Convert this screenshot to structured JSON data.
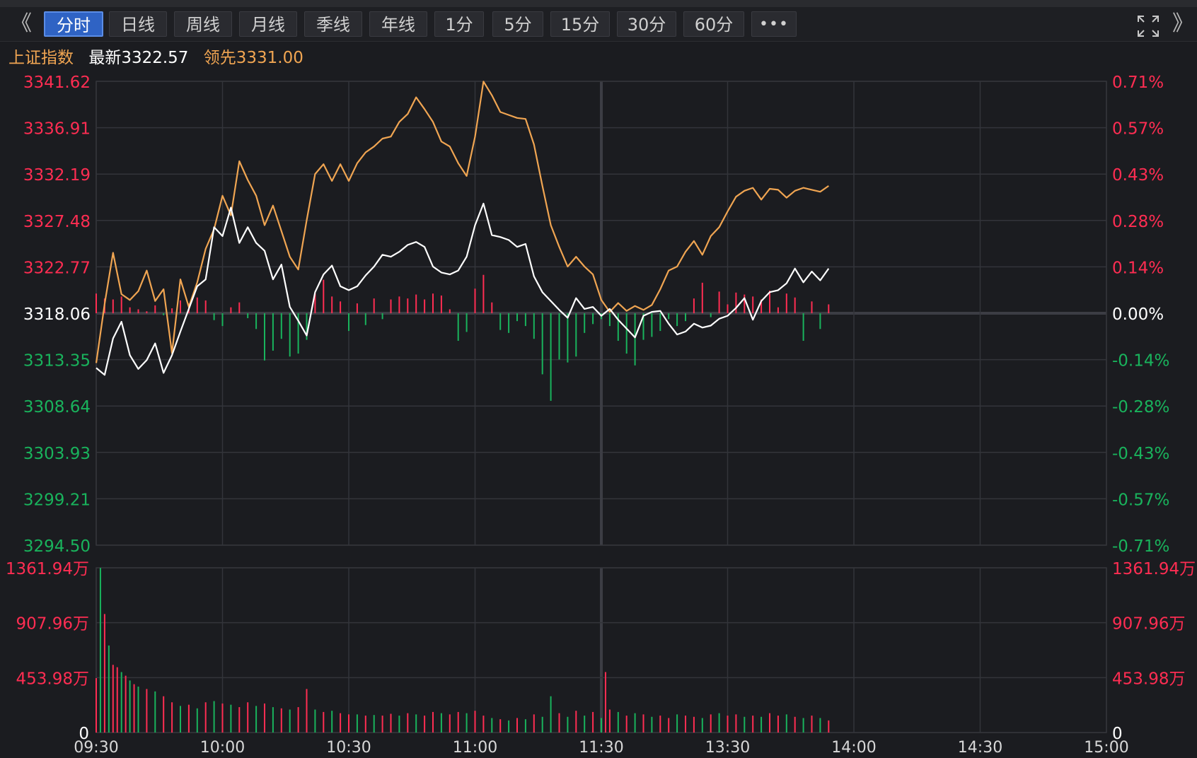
{
  "toolbar": {
    "left_arrow": "《",
    "right_arrow": "》",
    "tabs": [
      "分时",
      "日线",
      "周线",
      "月线",
      "季线",
      "年线",
      "1分",
      "5分",
      "15分",
      "30分",
      "60分",
      "•••"
    ],
    "active_tab": "分时"
  },
  "header": {
    "index_name": "上证指数",
    "latest": "最新3322.57",
    "leading": "领先3331.00"
  },
  "colors": {
    "background": "#1b1c20",
    "grid": "#33343a",
    "up": "#ff2d52",
    "down": "#19b35c",
    "price_line": "#ffffff",
    "leading_line": "#f0a552",
    "name_color": "#f0a552"
  },
  "chart_data": [
    {
      "type": "line",
      "title": "上证指数 分时",
      "base": 3318.06,
      "ylim": [
        3294.5,
        3341.62
      ],
      "y_tick_labels_left": [
        "3341.62",
        "3336.91",
        "3332.19",
        "3327.48",
        "3322.77",
        "3318.06",
        "3313.35",
        "3308.64",
        "3303.93",
        "3299.21",
        "3294.50"
      ],
      "y_tick_labels_right": [
        "0.71%",
        "0.57%",
        "0.43%",
        "0.28%",
        "0.14%",
        "0.00%",
        "-0.14%",
        "-0.28%",
        "-0.43%",
        "-0.57%",
        "-0.71%"
      ],
      "x_tick_labels": [
        "09:30",
        "10:00",
        "10:30",
        "11:00",
        "11:30",
        "13:30",
        "14:00",
        "14:30",
        "15:00"
      ],
      "x_minutes_total": 240,
      "series": [
        {
          "name": "最新",
          "x": [
            0,
            2,
            4,
            6,
            8,
            10,
            12,
            14,
            16,
            18,
            20,
            22,
            24,
            26,
            28,
            30,
            32,
            34,
            36,
            38,
            40,
            42,
            44,
            46,
            48,
            50,
            52,
            54,
            56,
            58,
            60,
            62,
            64,
            66,
            68,
            70,
            72,
            74,
            76,
            78,
            80,
            82,
            84,
            86,
            88,
            90,
            92,
            94,
            96,
            98,
            100,
            102,
            104,
            106,
            108,
            110,
            112,
            114,
            116,
            118,
            120,
            122,
            124,
            126,
            128,
            130,
            132,
            134,
            136,
            138,
            140,
            142,
            144,
            146,
            148,
            150,
            152,
            154,
            156,
            158,
            160,
            162,
            164,
            166,
            168,
            170,
            172,
            174
          ],
          "values": [
            3312.5,
            3311.8,
            3315.5,
            3317.2,
            3313.8,
            3312.4,
            3313.3,
            3315.0,
            3312.0,
            3313.8,
            3316.2,
            3318.5,
            3320.8,
            3321.5,
            3326.8,
            3325.9,
            3328.8,
            3325.2,
            3326.8,
            3325.2,
            3324.4,
            3321.5,
            3323.0,
            3318.7,
            3317.3,
            3315.8,
            3320.2,
            3322.0,
            3322.9,
            3320.8,
            3320.4,
            3320.8,
            3321.9,
            3322.8,
            3324.0,
            3323.8,
            3324.3,
            3325.0,
            3325.3,
            3324.8,
            3322.8,
            3322.2,
            3322.0,
            3322.4,
            3323.8,
            3327.0,
            3329.2,
            3326.0,
            3325.8,
            3325.5,
            3324.8,
            3325.1,
            3321.8,
            3320.2,
            3319.3,
            3318.4,
            3317.6,
            3319.6,
            3318.5,
            3318.7,
            3317.8,
            3318.5,
            3317.4,
            3316.5,
            3315.6,
            3317.8,
            3318.2,
            3318.3,
            3317.0,
            3315.9,
            3316.2,
            3317.0,
            3316.6,
            3316.8,
            3317.5,
            3317.8,
            3318.6,
            3319.6,
            3317.4,
            3319.3,
            3320.2,
            3320.4,
            3321.1,
            3322.6,
            3321.2,
            3322.3,
            3321.4,
            3322.6
          ]
        },
        {
          "name": "领先",
          "x": [
            0,
            2,
            4,
            6,
            8,
            10,
            12,
            14,
            16,
            18,
            20,
            22,
            24,
            26,
            28,
            30,
            32,
            34,
            36,
            38,
            40,
            42,
            44,
            46,
            48,
            50,
            52,
            54,
            56,
            58,
            60,
            62,
            64,
            66,
            68,
            70,
            72,
            74,
            76,
            78,
            80,
            82,
            84,
            86,
            88,
            90,
            92,
            94,
            96,
            98,
            100,
            102,
            104,
            106,
            108,
            110,
            112,
            114,
            116,
            118,
            120,
            122,
            124,
            126,
            128,
            130,
            132,
            134,
            136,
            138,
            140,
            142,
            144,
            146,
            148,
            150,
            152,
            154,
            156,
            158,
            160,
            162,
            164,
            166,
            168,
            170,
            172,
            174
          ],
          "values": [
            3313.0,
            3319.0,
            3324.2,
            3320.0,
            3319.4,
            3320.3,
            3322.4,
            3319.3,
            3320.5,
            3314.0,
            3321.5,
            3318.7,
            3321.2,
            3324.6,
            3326.6,
            3330.0,
            3328.0,
            3333.5,
            3331.6,
            3330.0,
            3327.0,
            3329.0,
            3326.4,
            3323.8,
            3322.5,
            3327.5,
            3332.2,
            3333.2,
            3331.5,
            3333.2,
            3331.5,
            3333.3,
            3334.4,
            3335.0,
            3335.8,
            3336.0,
            3337.5,
            3338.3,
            3340.0,
            3338.8,
            3337.5,
            3335.5,
            3335.0,
            3333.3,
            3332.0,
            3336.0,
            3341.6,
            3340.2,
            3338.5,
            3338.2,
            3337.9,
            3337.8,
            3335.2,
            3331.0,
            3327.0,
            3324.8,
            3322.8,
            3323.8,
            3322.8,
            3322.0,
            3319.4,
            3318.2,
            3319.1,
            3318.3,
            3318.8,
            3318.4,
            3318.9,
            3320.5,
            3322.4,
            3322.8,
            3324.3,
            3325.4,
            3324.0,
            3325.9,
            3326.8,
            3328.4,
            3329.9,
            3330.5,
            3330.8,
            3329.6,
            3330.7,
            3330.6,
            3329.8,
            3330.5,
            3330.8,
            3330.6,
            3330.4,
            3331.0
          ]
        },
        {
          "name": "涨跌柱",
          "type": "bar",
          "x": [
            0,
            2,
            4,
            6,
            8,
            10,
            12,
            14,
            16,
            18,
            20,
            22,
            24,
            26,
            28,
            30,
            32,
            34,
            36,
            38,
            40,
            42,
            44,
            46,
            48,
            50,
            52,
            54,
            56,
            58,
            60,
            62,
            64,
            66,
            68,
            70,
            72,
            74,
            76,
            78,
            80,
            82,
            84,
            86,
            88,
            90,
            92,
            94,
            96,
            98,
            100,
            102,
            104,
            106,
            108,
            110,
            112,
            114,
            116,
            118,
            120,
            122,
            124,
            126,
            128,
            130,
            132,
            134,
            136,
            138,
            140,
            142,
            144,
            146,
            148,
            150,
            152,
            154,
            156,
            158,
            160,
            162,
            164,
            166,
            168,
            170,
            172,
            174
          ],
          "values": [
            2.0,
            1.5,
            1.4,
            1.7,
            0.6,
            0.4,
            0.2,
            0.8,
            -0.2,
            0.5,
            1.3,
            1.0,
            1.6,
            1.3,
            -0.7,
            -1.3,
            0.6,
            1.1,
            -0.5,
            -1.6,
            -4.8,
            -3.8,
            -2.6,
            -4.4,
            -4.1,
            -2.7,
            2.0,
            3.4,
            1.7,
            1.2,
            -1.8,
            1.0,
            -1.2,
            1.5,
            -0.6,
            1.4,
            1.7,
            1.5,
            1.9,
            1.4,
            2.0,
            1.8,
            0.4,
            -2.8,
            -1.9,
            2.5,
            3.9,
            1.1,
            -1.7,
            -2.0,
            -0.8,
            -1.3,
            -2.6,
            -6.2,
            -8.9,
            -4.7,
            -5.0,
            -4.4,
            -2.0,
            -1.1,
            -0.6,
            -1.3,
            -2.8,
            -4.1,
            -5.3,
            -2.7,
            -2.4,
            -1.8,
            -0.6,
            -1.3,
            -0.8,
            1.5,
            3.1,
            -0.4,
            2.2,
            0.9,
            2.1,
            1.9,
            1.7,
            1.4,
            2.3,
            0.6,
            2.0,
            1.6,
            -2.8,
            1.2,
            -1.6,
            0.9
          ]
        }
      ]
    },
    {
      "type": "bar",
      "title": "成交量",
      "unit": "万",
      "ylim": [
        0,
        1361.94
      ],
      "y_tick_labels_left": [
        "1361.94万",
        "907.96万",
        "453.98万",
        "0"
      ],
      "y_tick_labels_right": [
        "1361.94万",
        "907.96万",
        "453.98万",
        "0"
      ],
      "x": [
        0,
        1,
        2,
        3,
        4,
        5,
        6,
        7,
        8,
        9,
        10,
        12,
        14,
        16,
        18,
        20,
        22,
        24,
        26,
        28,
        30,
        32,
        34,
        36,
        38,
        40,
        42,
        44,
        46,
        48,
        50,
        52,
        54,
        56,
        58,
        60,
        62,
        64,
        66,
        68,
        70,
        72,
        74,
        76,
        78,
        80,
        82,
        84,
        86,
        88,
        90,
        92,
        94,
        96,
        98,
        100,
        102,
        104,
        106,
        108,
        110,
        112,
        114,
        116,
        118,
        120,
        121,
        122,
        124,
        126,
        128,
        130,
        132,
        134,
        136,
        138,
        140,
        142,
        144,
        146,
        148,
        150,
        152,
        154,
        156,
        158,
        160,
        162,
        164,
        166,
        168,
        170,
        172,
        174
      ],
      "values": [
        450,
        1361,
        980,
        720,
        560,
        540,
        500,
        470,
        430,
        400,
        380,
        360,
        340,
        300,
        250,
        220,
        230,
        200,
        250,
        260,
        240,
        230,
        210,
        250,
        220,
        240,
        210,
        200,
        190,
        210,
        360,
        190,
        170,
        180,
        160,
        150,
        150,
        140,
        145,
        140,
        155,
        140,
        160,
        150,
        140,
        170,
        160,
        150,
        170,
        160,
        180,
        140,
        120,
        110,
        100,
        120,
        110,
        150,
        130,
        300,
        160,
        130,
        180,
        140,
        170,
        120,
        500,
        190,
        170,
        140,
        160,
        150,
        130,
        140,
        120,
        150,
        140,
        130,
        120,
        150,
        160,
        140,
        150,
        130,
        140,
        130,
        160,
        140,
        150,
        130,
        120,
        140,
        120,
        100
      ],
      "colors": [
        "up",
        "down",
        "up",
        "down",
        "up",
        "up",
        "down",
        "up",
        "down",
        "up",
        "down",
        "up",
        "down",
        "up",
        "up",
        "down",
        "up",
        "down",
        "up",
        "down",
        "up",
        "down",
        "up",
        "up",
        "down",
        "up",
        "down",
        "up",
        "down",
        "up",
        "up",
        "down",
        "up",
        "down",
        "up",
        "up",
        "down",
        "up",
        "down",
        "up",
        "up",
        "down",
        "up",
        "down",
        "up",
        "up",
        "down",
        "up",
        "up",
        "down",
        "up",
        "up",
        "down",
        "up",
        "down",
        "up",
        "down",
        "up",
        "down",
        "down",
        "up",
        "down",
        "up",
        "down",
        "up",
        "down",
        "up",
        "up",
        "down",
        "up",
        "down",
        "up",
        "down",
        "up",
        "up",
        "down",
        "up",
        "up",
        "down",
        "up",
        "down",
        "up",
        "up",
        "down",
        "up",
        "down",
        "up",
        "up",
        "down",
        "up",
        "down",
        "up",
        "down",
        "up"
      ]
    }
  ]
}
